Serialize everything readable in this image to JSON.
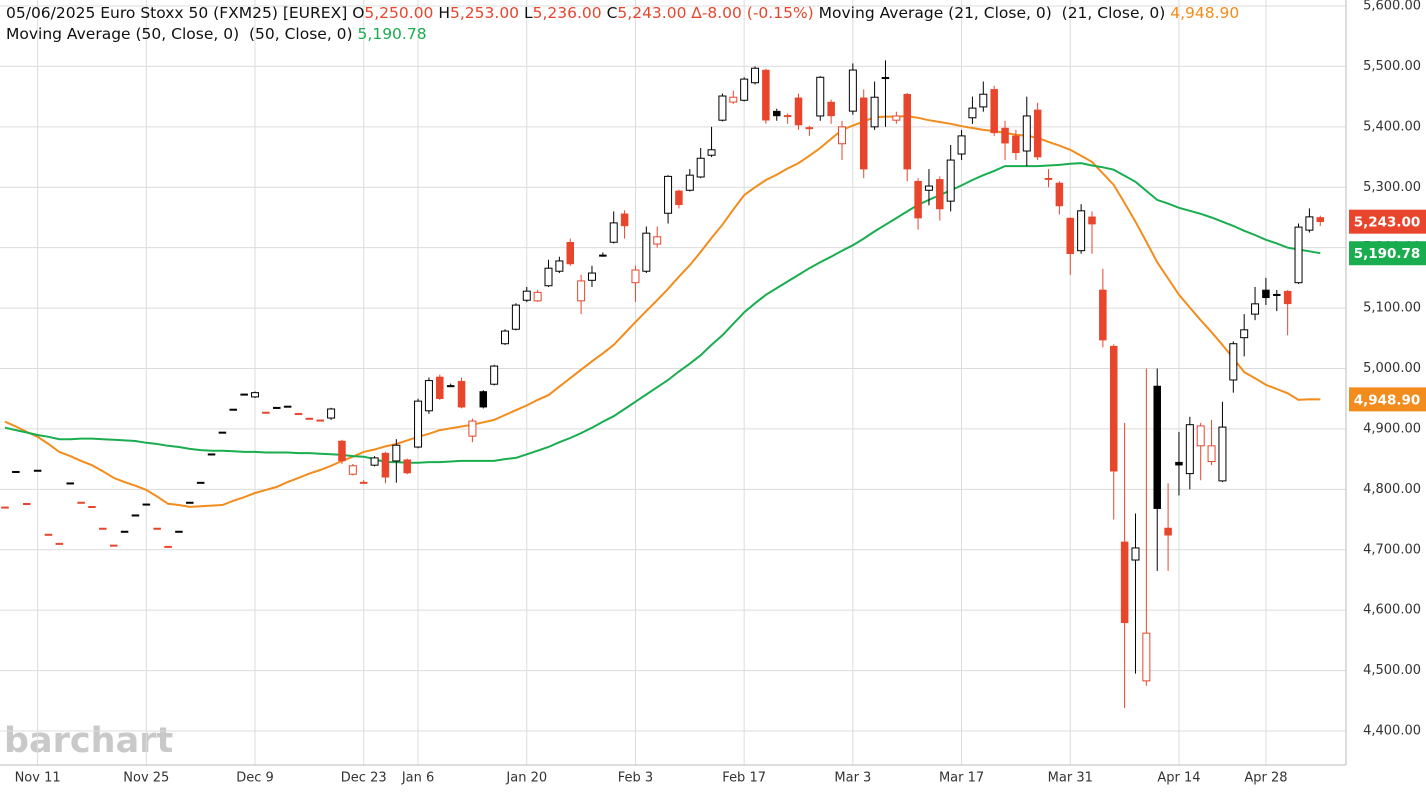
{
  "header": {
    "title": "05/06/2025 Euro Stoxx 50 (FXM25) [EUREX]",
    "ohlc": [
      {
        "key": "O",
        "text": "5,250.00"
      },
      {
        "key": "H",
        "text": "5,253.00"
      },
      {
        "key": "L",
        "text": "5,236.00"
      },
      {
        "key": "C",
        "text": "5,243.00"
      }
    ],
    "change": "∆-8.00 (-0.15%)"
  },
  "watermark": "barchart",
  "chart_data": {
    "type": "candlestick",
    "categories": [
      null,
      null,
      null,
      "Nov 11",
      null,
      null,
      null,
      null,
      null,
      null,
      null,
      null,
      null,
      "Nov 25",
      null,
      null,
      null,
      null,
      null,
      null,
      null,
      null,
      null,
      "Dec 9",
      null,
      null,
      null,
      null,
      null,
      null,
      null,
      null,
      null,
      "Dec 23",
      null,
      null,
      null,
      null,
      "Jan 6",
      null,
      null,
      null,
      null,
      null,
      null,
      null,
      null,
      null,
      "Jan 20",
      null,
      null,
      null,
      null,
      null,
      null,
      null,
      null,
      null,
      "Feb 3",
      null,
      null,
      null,
      null,
      null,
      null,
      null,
      null,
      null,
      "Feb 17",
      null,
      null,
      null,
      null,
      null,
      null,
      null,
      null,
      null,
      "Mar 3",
      null,
      null,
      null,
      null,
      null,
      null,
      null,
      null,
      null,
      "Mar 17",
      null,
      null,
      null,
      null,
      null,
      null,
      null,
      null,
      null,
      "Mar 31",
      null,
      null,
      null,
      null,
      null,
      null,
      null,
      null,
      null,
      "Apr 14",
      null,
      null,
      null,
      null,
      null,
      null,
      null,
      "Apr 28",
      null,
      null,
      null,
      null,
      null
    ],
    "open": [
      4771,
      4830,
      4777,
      4832,
      4726,
      4711,
      4811,
      4779,
      4772,
      4736,
      4708,
      4731,
      4758,
      4776,
      4736,
      4706,
      4731,
      4779,
      4812,
      4859,
      4895,
      4933,
      4958,
      4953,
      4928,
      4936,
      4938,
      4926,
      4918,
      4915,
      4918,
      4880,
      4825,
      4812,
      4840,
      4860,
      4847,
      4849,
      4870,
      4930,
      4986,
      4972,
      4979,
      4888,
      4962,
      4974,
      5041,
      5065,
      5113,
      5112,
      5137,
      5161,
      5209,
      5112,
      5146,
      5188,
      5209,
      5256,
      5142,
      5161,
      5206,
      5257,
      5294,
      5295,
      5317,
      5353,
      5411,
      5441,
      5444,
      5473,
      5494,
      5426,
      5419,
      5448,
      5399,
      5418,
      5441,
      5372,
      5426,
      5448,
      5400,
      5482,
      5411,
      5454,
      5310,
      5295,
      5313,
      5277,
      5355,
      5415,
      5433,
      5462,
      5398,
      5385,
      5360,
      5428,
      5315,
      5307,
      5249,
      5195,
      5251,
      5130,
      5037,
      4713,
      4683,
      4483,
      4971,
      4736,
      4845,
      4826,
      4872,
      4846,
      4814,
      4981,
      5051,
      5090,
      5130,
      5123,
      5128,
      5142,
      5229,
      5250
    ],
    "high": [
      4771,
      4830,
      4777,
      4832,
      4726,
      4711,
      4811,
      4779,
      4772,
      4736,
      4708,
      4731,
      4758,
      4776,
      4736,
      4706,
      4731,
      4779,
      4812,
      4859,
      4895,
      4933,
      4958,
      4962,
      4928,
      4936,
      4938,
      4926,
      4918,
      4915,
      4935,
      4882,
      4842,
      4815,
      4855,
      4862,
      4883,
      4851,
      4950,
      4985,
      4990,
      4975,
      4985,
      4917,
      4964,
      5006,
      5065,
      5108,
      5135,
      5130,
      5180,
      5185,
      5215,
      5155,
      5170,
      5192,
      5260,
      5262,
      5170,
      5235,
      5235,
      5320,
      5296,
      5330,
      5365,
      5400,
      5455,
      5460,
      5482,
      5500,
      5496,
      5430,
      5422,
      5455,
      5402,
      5484,
      5445,
      5410,
      5505,
      5462,
      5475,
      5510,
      5425,
      5456,
      5315,
      5330,
      5318,
      5370,
      5395,
      5450,
      5475,
      5468,
      5410,
      5395,
      5450,
      5440,
      5330,
      5310,
      5250,
      5272,
      5260,
      5165,
      5040,
      4910,
      4760,
      5000,
      5000,
      4810,
      4895,
      4920,
      4910,
      4915,
      4945,
      5045,
      5090,
      5135,
      5150,
      5130,
      5130,
      5240,
      5265,
      5253
    ],
    "low": [
      4771,
      4830,
      4777,
      4832,
      4726,
      4711,
      4811,
      4779,
      4772,
      4736,
      4708,
      4731,
      4758,
      4776,
      4736,
      4706,
      4731,
      4779,
      4812,
      4859,
      4895,
      4933,
      4958,
      4951,
      4928,
      4936,
      4938,
      4926,
      4918,
      4915,
      4915,
      4842,
      4823,
      4810,
      4838,
      4810,
      4811,
      4825,
      4868,
      4925,
      4948,
      4970,
      4934,
      4878,
      4934,
      4972,
      5039,
      5063,
      5110,
      5110,
      5135,
      5158,
      5170,
      5090,
      5135,
      5185,
      5207,
      5215,
      5110,
      5158,
      5200,
      5240,
      5265,
      5293,
      5315,
      5350,
      5409,
      5438,
      5442,
      5470,
      5405,
      5410,
      5405,
      5395,
      5385,
      5410,
      5405,
      5345,
      5420,
      5315,
      5395,
      5400,
      5405,
      5310,
      5230,
      5270,
      5245,
      5260,
      5345,
      5405,
      5425,
      5385,
      5345,
      5345,
      5335,
      5345,
      5300,
      5255,
      5155,
      5190,
      5190,
      5035,
      4750,
      4438,
      4495,
      4475,
      4665,
      4665,
      4790,
      4800,
      4815,
      4840,
      4812,
      4960,
      5020,
      5080,
      5105,
      5095,
      5055,
      5140,
      5225,
      5236
    ],
    "close": [
      4771,
      4830,
      4777,
      4832,
      4726,
      4711,
      4811,
      4779,
      4772,
      4736,
      4708,
      4731,
      4758,
      4776,
      4736,
      4706,
      4731,
      4779,
      4812,
      4859,
      4895,
      4933,
      4958,
      4960,
      4928,
      4936,
      4938,
      4926,
      4918,
      4915,
      4933,
      4847,
      4839,
      4812,
      4852,
      4820,
      4873,
      4827,
      4946,
      4980,
      4950,
      4972,
      4936,
      4913,
      4936,
      5004,
      5062,
      5105,
      5128,
      5126,
      5166,
      5178,
      5173,
      5145,
      5158,
      5188,
      5241,
      5236,
      5163,
      5224,
      5218,
      5318,
      5271,
      5320,
      5348,
      5362,
      5451,
      5449,
      5479,
      5497,
      5411,
      5418,
      5417,
      5403,
      5398,
      5482,
      5418,
      5400,
      5494,
      5330,
      5449,
      5482,
      5418,
      5330,
      5249,
      5302,
      5264,
      5345,
      5385,
      5431,
      5454,
      5390,
      5373,
      5357,
      5418,
      5350,
      5315,
      5269,
      5190,
      5261,
      5239,
      5047,
      4830,
      4579,
      4703,
      4562,
      4768,
      4724,
      4840,
      4907,
      4905,
      4872,
      4903,
      5041,
      5064,
      5107,
      5117,
      5123,
      5107,
      5234,
      5251,
      5243
    ],
    "up_color": "#000000",
    "down_color": "#e8452c",
    "lines": [
      {
        "name": "Moving Average (21, Close, 0)",
        "params": "(21, Close, 0)",
        "last_label": "4,948.90",
        "color": "#f28c1c",
        "values": [
          4912,
          4904,
          4895,
          4887,
          4875,
          4862,
          4855,
          4847,
          4840,
          4830,
          4819,
          4812,
          4806,
          4799,
          4788,
          4776,
          4774,
          4771,
          4772,
          4773,
          4774,
          4781,
          4787,
          4794,
          4799,
          4804,
          4812,
          4819,
          4826,
          4832,
          4839,
          4847,
          4854,
          4862,
          4866,
          4871,
          4875,
          4881,
          4887,
          4892,
          4898,
          4901,
          4904,
          4907,
          4911,
          4915,
          4923,
          4931,
          4939,
          4948,
          4956,
          4970,
          4984,
          4998,
          5012,
          5025,
          5039,
          5058,
          5077,
          5095,
          5113,
          5132,
          5152,
          5171,
          5193,
          5216,
          5238,
          5263,
          5287,
          5300,
          5312,
          5321,
          5331,
          5340,
          5352,
          5365,
          5380,
          5395,
          5402,
          5409,
          5416,
          5417,
          5417,
          5418,
          5415,
          5411,
          5408,
          5405,
          5401,
          5398,
          5395,
          5393,
          5390,
          5387,
          5385,
          5382,
          5375,
          5369,
          5362,
          5352,
          5342,
          5323,
          5304,
          5274,
          5243,
          5210,
          5176,
          5149,
          5122,
          5101,
          5080,
          5060,
          5039,
          5017,
          4994,
          4984,
          4973,
          4966,
          4959,
          4948,
          4949,
          4948.9
        ]
      },
      {
        "name": "Moving Average (50, Close, 0)",
        "params": "(50, Close, 0)",
        "last_label": "5,190.78",
        "color": "#1aad4f",
        "values": [
          4902,
          4898,
          4894,
          4890,
          4887,
          4883,
          4883,
          4884,
          4884,
          4883,
          4882,
          4881,
          4880,
          4877,
          4875,
          4872,
          4870,
          4867,
          4865,
          4864,
          4864,
          4863,
          4862,
          4862,
          4861,
          4861,
          4861,
          4860,
          4860,
          4859,
          4858,
          4857,
          4855,
          4854,
          4850,
          4845,
          4845,
          4844,
          4844,
          4845,
          4845,
          4846,
          4847,
          4847,
          4847,
          4847,
          4850,
          4852,
          4858,
          4864,
          4870,
          4878,
          4885,
          4893,
          4902,
          4912,
          4921,
          4933,
          4945,
          4957,
          4969,
          4981,
          4995,
          5008,
          5022,
          5039,
          5055,
          5074,
          5093,
          5108,
          5122,
          5133,
          5144,
          5155,
          5166,
          5176,
          5185,
          5195,
          5204,
          5215,
          5227,
          5238,
          5249,
          5260,
          5271,
          5279,
          5287,
          5295,
          5303,
          5312,
          5320,
          5327,
          5335,
          5335,
          5335,
          5335,
          5336,
          5337,
          5339,
          5340,
          5336,
          5333,
          5329,
          5319,
          5309,
          5294,
          5279,
          5273,
          5266,
          5261,
          5256,
          5250,
          5243,
          5236,
          5228,
          5221,
          5213,
          5207,
          5200,
          5197,
          5194,
          5190.78
        ]
      }
    ],
    "price_labels": [
      {
        "value": 5243,
        "label": "5,243.00",
        "color": "#e8452c"
      },
      {
        "value": 5190.78,
        "label": "5,190.78",
        "color": "#1aad4f"
      },
      {
        "value": 4948.9,
        "label": "4,948.90",
        "color": "#f28c1c"
      }
    ],
    "ylim": [
      4400,
      5600
    ],
    "yticks": [
      {
        "value": 4400,
        "label": "4,400.00"
      },
      {
        "value": 4500,
        "label": "4,500.00"
      },
      {
        "value": 4600,
        "label": "4,600.00"
      },
      {
        "value": 4700,
        "label": "4,700.00"
      },
      {
        "value": 4800,
        "label": "4,800.00"
      },
      {
        "value": 4900,
        "label": "4,900.00"
      },
      {
        "value": 5000,
        "label": "5,000.00"
      },
      {
        "value": 5100,
        "label": "5,100.00"
      },
      {
        "value": 5200,
        "label": "5,200.00"
      },
      {
        "value": 5300,
        "label": "5,300.00"
      },
      {
        "value": 5400,
        "label": "5,400.00"
      },
      {
        "value": 5500,
        "label": "5,500.00"
      },
      {
        "value": 5600,
        "label": "5,600.00"
      }
    ],
    "grid": true
  }
}
